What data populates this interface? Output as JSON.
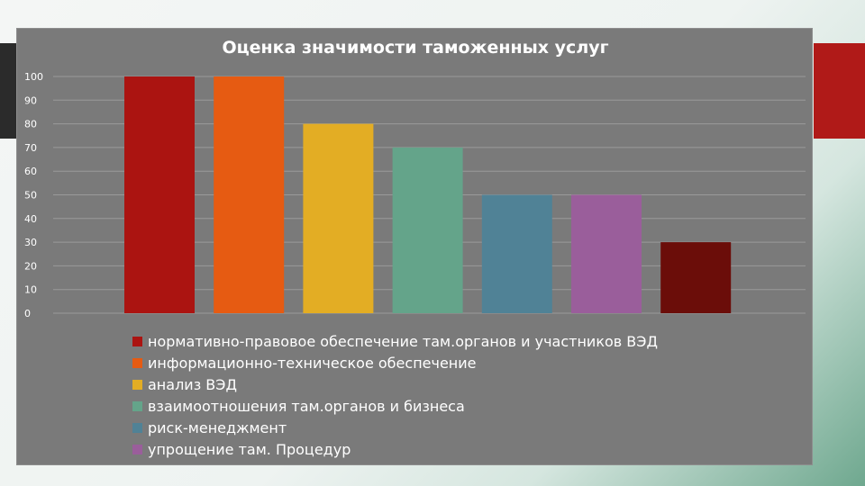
{
  "chart_data": {
    "type": "bar",
    "title": "Оценка значимости таможенных услуг",
    "xlabel": "",
    "ylabel": "",
    "ylim": [
      0,
      100
    ],
    "yticks": [
      0,
      10,
      20,
      30,
      40,
      50,
      60,
      70,
      80,
      90,
      100
    ],
    "grid": true,
    "legend_position": "bottom",
    "categories": [
      "нормативно-правовое обеспечение там.органов и участников ВЭД",
      "информационно-техническое обеспечение",
      "анализ ВЭД",
      "взаимоотношения там.органов и бизнеса",
      "риск-менеджмент",
      "упрощение там. Процедур",
      ""
    ],
    "values": [
      100,
      100,
      80,
      70,
      50,
      50,
      30
    ],
    "colors": [
      "#ab1411",
      "#e65b12",
      "#e3ad24",
      "#64a48a",
      "#508296",
      "#9a5e9b",
      "#6b0d09"
    ],
    "legend": [
      {
        "label": "нормативно-правовое обеспечение там.органов и участников ВЭД",
        "color": "#ab1411"
      },
      {
        "label": "информационно-техническое обеспечение",
        "color": "#e65b12"
      },
      {
        "label": "анализ ВЭД",
        "color": "#e3ad24"
      },
      {
        "label": "взаимоотношения там.органов и бизнеса",
        "color": "#64a48a"
      },
      {
        "label": "риск-менеджмент",
        "color": "#508296"
      },
      {
        "label": "упрощение там. Процедур",
        "color": "#9a5e9b"
      }
    ]
  }
}
